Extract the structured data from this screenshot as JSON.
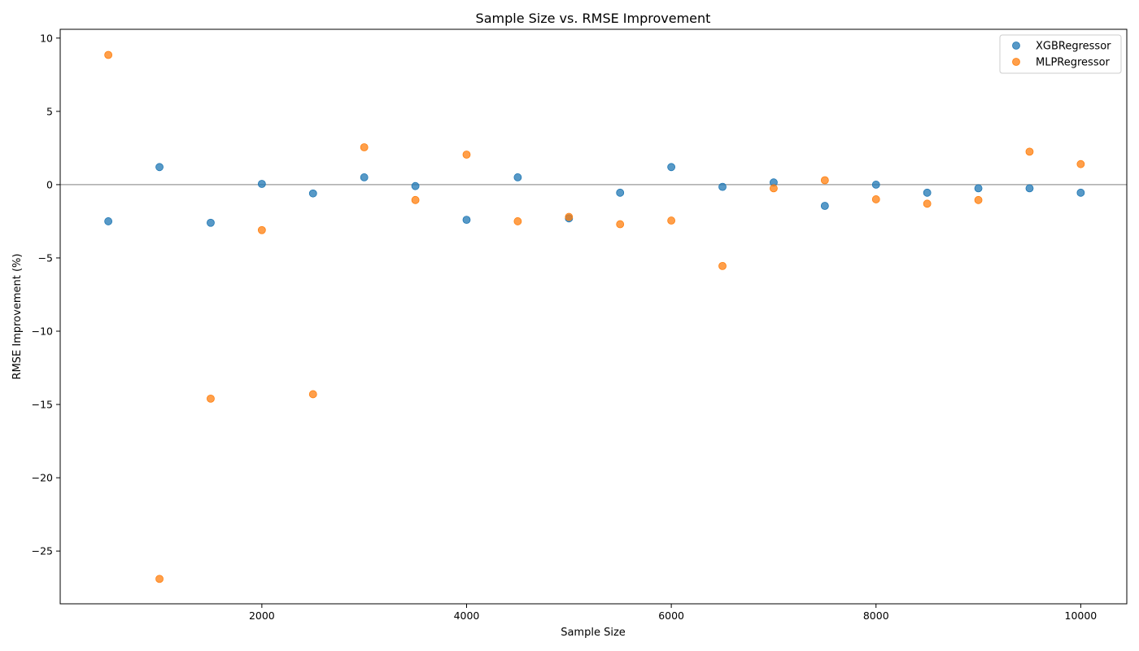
{
  "chart_data": {
    "type": "scatter",
    "title": "Sample Size vs. RMSE Improvement",
    "xlabel": "Sample Size",
    "ylabel": "RMSE Improvement (%)",
    "xlim": [
      30,
      10450
    ],
    "ylim": [
      -28.6,
      10.6
    ],
    "xticks": [
      2000,
      4000,
      6000,
      8000,
      10000
    ],
    "yticks": [
      10,
      5,
      0,
      -5,
      -10,
      -15,
      -20,
      -25
    ],
    "reference_line_y": 0,
    "grid": false,
    "legend_position": "top-right",
    "x": [
      500,
      1000,
      1500,
      2000,
      2500,
      3000,
      3500,
      4000,
      4500,
      5000,
      5500,
      6000,
      6500,
      7000,
      7500,
      8000,
      8500,
      9000,
      9500,
      10000
    ],
    "series": [
      {
        "name": "XGBRegressor",
        "color": "#1f77b4",
        "values": [
          -2.5,
          1.2,
          -2.6,
          0.05,
          -0.6,
          0.5,
          -0.1,
          -2.4,
          0.5,
          -2.3,
          -0.55,
          1.2,
          -0.15,
          0.15,
          -1.45,
          0.0,
          -0.55,
          -0.25,
          -0.25,
          -0.55
        ]
      },
      {
        "name": "MLPRegressor",
        "color": "#ff7f0e",
        "values": [
          8.85,
          -26.9,
          -14.6,
          -3.1,
          -14.3,
          2.55,
          -1.05,
          2.05,
          -2.5,
          -2.2,
          -2.7,
          -2.45,
          -5.55,
          -0.25,
          0.3,
          -1.0,
          -1.3,
          -1.05,
          2.25,
          1.4
        ]
      }
    ]
  }
}
